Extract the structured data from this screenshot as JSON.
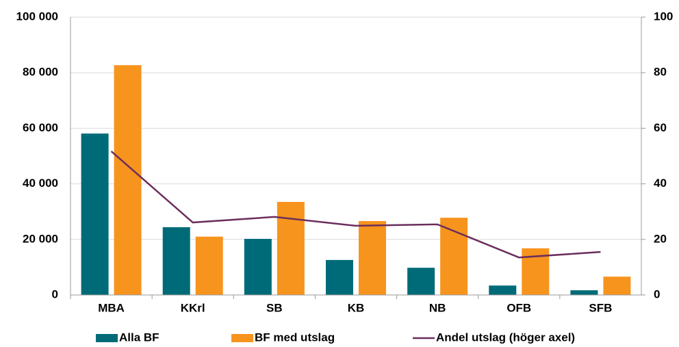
{
  "chart_data": {
    "type": "bar_line",
    "categories": [
      "MBA",
      "KKrl",
      "SB",
      "KB",
      "NB",
      "OFB",
      "SFB"
    ],
    "series": [
      {
        "name": "Alla BF",
        "color": "#006b78",
        "values": [
          58100,
          24400,
          20200,
          12600,
          9800,
          3400,
          1700
        ]
      },
      {
        "name": "BF med utslag",
        "color": "#f7941d",
        "values": [
          82700,
          21000,
          33500,
          26600,
          27800,
          16800,
          6600
        ]
      },
      {
        "name": "Andel utslag (höger axel)",
        "color": "#6b2d5c",
        "axis": "y2",
        "values": [
          51.7,
          26.1,
          28.1,
          24.9,
          25.4,
          13.5,
          15.5
        ]
      }
    ],
    "ylim": [
      0,
      100000
    ],
    "yticks": [
      0,
      {
        "value": 20000,
        "label": "20 000"
      },
      {
        "value": 40000,
        "label": "40 000"
      },
      {
        "value": 60000,
        "label": "60 000"
      },
      {
        "value": 80000,
        "label": "80 000"
      },
      {
        "value": 100000,
        "label": "100 000"
      }
    ],
    "y2lim": [
      0,
      100
    ],
    "y2ticks": [
      0,
      20,
      40,
      60,
      80,
      100
    ],
    "grid": true,
    "legend": "bottom"
  }
}
